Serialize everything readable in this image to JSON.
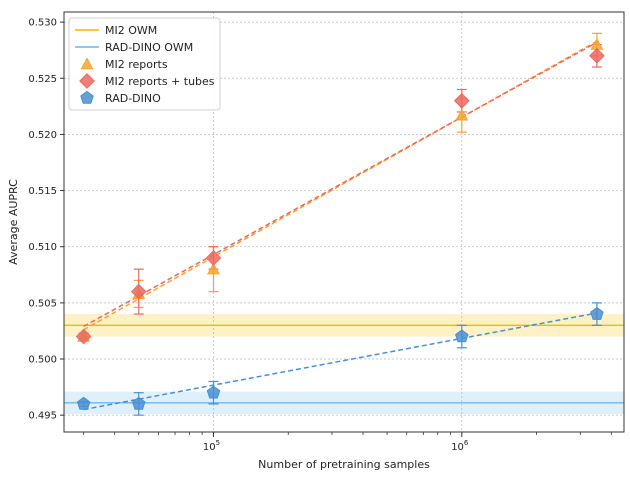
{
  "chart_data": {
    "type": "scatter",
    "xscale": "log",
    "xlabel": "Number of pretraining samples",
    "ylabel": "Average AUPRC",
    "xlim": [
      25000,
      4500000
    ],
    "ylim": [
      0.4935,
      0.5309
    ],
    "grid": true,
    "legend_position": "top-left",
    "x_ticks": [
      {
        "value": 100000,
        "base": "10",
        "exp": "5"
      },
      {
        "value": 1000000,
        "base": "10",
        "exp": "6"
      }
    ],
    "y_ticks": [
      {
        "value": 0.495,
        "label": "0.495"
      },
      {
        "value": 0.5,
        "label": "0.500"
      },
      {
        "value": 0.505,
        "label": "0.505"
      },
      {
        "value": 0.51,
        "label": "0.510"
      },
      {
        "value": 0.515,
        "label": "0.515"
      },
      {
        "value": 0.52,
        "label": "0.520"
      },
      {
        "value": 0.525,
        "label": "0.525"
      },
      {
        "value": 0.53,
        "label": "0.530"
      }
    ],
    "baselines": [
      {
        "name": "MI2 OWM",
        "value": 0.503,
        "band": [
          0.502,
          0.504
        ],
        "color": "#f5b800",
        "band_color": "#fdefbf"
      },
      {
        "name": "RAD-DINO OWM",
        "value": 0.4961,
        "band": [
          0.4951,
          0.4971
        ],
        "color": "#6cb8ef",
        "band_color": "#ddeefb"
      }
    ],
    "series": [
      {
        "name": "MI2 reports",
        "marker": "triangle",
        "color": "#f7a431",
        "x": [
          30000,
          50000,
          100000,
          1000000,
          3500000
        ],
        "y": [
          0.502,
          0.5058,
          0.508,
          0.5217,
          0.528
        ],
        "err": [
          0.0003,
          0.0012,
          0.002,
          0.0015,
          0.001
        ],
        "fit": [
          0.5026,
          0.5283
        ]
      },
      {
        "name": "MI2 reports + tubes",
        "marker": "diamond",
        "color": "#ea6a62",
        "x": [
          30000,
          50000,
          100000,
          1000000,
          3500000
        ],
        "y": [
          0.502,
          0.506,
          0.509,
          0.523,
          0.527
        ],
        "err": [
          0.0003,
          0.002,
          0.001,
          0.001,
          0.001
        ],
        "fit": [
          0.5029,
          0.5282
        ]
      },
      {
        "name": "RAD-DINO",
        "marker": "pentagon",
        "color": "#4a8fd1",
        "x": [
          30000,
          50000,
          100000,
          1000000,
          3500000
        ],
        "y": [
          0.496,
          0.496,
          0.497,
          0.502,
          0.504
        ],
        "err": [
          0.0002,
          0.001,
          0.001,
          0.001,
          0.001
        ],
        "fit": [
          0.4955,
          0.5041
        ]
      }
    ]
  }
}
